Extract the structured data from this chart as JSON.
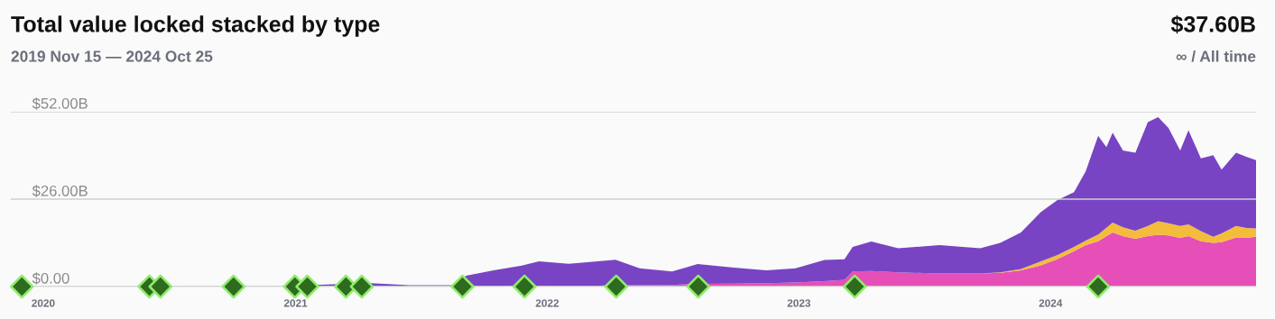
{
  "chart_data": {
    "type": "area",
    "stacked": true,
    "title": "Total value locked stacked by type",
    "subtitle": "2019 Nov 15 — 2024 Oct 25",
    "annotations": [
      "$37.60B",
      "∞ / All time"
    ],
    "x": [
      "2019-11-15",
      "2020-06-01",
      "2020-12-01",
      "2021-02-15",
      "2021-04-15",
      "2021-06-15",
      "2021-08-25",
      "2021-09-05",
      "2021-10-15",
      "2021-11-25",
      "2021-12-20",
      "2022-02-01",
      "2022-03-15",
      "2022-04-10",
      "2022-05-15",
      "2022-07-01",
      "2022-08-07",
      "2022-09-29",
      "2022-11-15",
      "2022-12-27",
      "2023-02-07",
      "2023-03-08",
      "2023-03-20",
      "2023-04-16",
      "2023-05-25",
      "2023-07-24",
      "2023-09-21",
      "2023-10-20",
      "2023-11-19",
      "2023-12-18",
      "2024-01-11",
      "2024-02-04",
      "2024-02-21",
      "2024-03-10",
      "2024-03-22",
      "2024-03-31",
      "2024-04-15",
      "2024-05-03",
      "2024-05-21",
      "2024-06-05",
      "2024-06-20",
      "2024-07-07",
      "2024-07-19",
      "2024-08-06",
      "2024-08-24",
      "2024-09-05",
      "2024-09-26",
      "2024-10-11",
      "2024-10-25"
    ],
    "series": [
      {
        "color": "#e64fb8",
        "values": [
          0,
          0,
          0,
          0.1,
          0.1,
          0.1,
          0.1,
          0.1,
          0.1,
          0.2,
          0.2,
          0.3,
          0.3,
          0.4,
          0.4,
          0.5,
          0.8,
          0.9,
          1.0,
          1.2,
          1.6,
          2.0,
          4.5,
          4.6,
          4.2,
          3.9,
          3.9,
          4.1,
          4.8,
          6.3,
          8.2,
          10.5,
          12.3,
          13.5,
          15.0,
          16.1,
          15.0,
          14.2,
          15.0,
          15.4,
          15.2,
          14.5,
          15.0,
          13.5,
          13.0,
          13.2,
          14.6,
          14.5,
          14.8
        ]
      },
      {
        "color": "#f3bd3b",
        "values": [
          0,
          0,
          0,
          0,
          0,
          0,
          0,
          0,
          0,
          0,
          0,
          0,
          0,
          0,
          0,
          0,
          0,
          0,
          0,
          0,
          0,
          0,
          0,
          0,
          0,
          0,
          0,
          0.1,
          0.4,
          1.2,
          1.2,
          1.3,
          1.4,
          2.0,
          2.5,
          2.9,
          2.6,
          2.4,
          3.0,
          4.0,
          3.6,
          3.5,
          3.5,
          3.0,
          1.8,
          2.6,
          3.4,
          2.9,
          2.5
        ]
      },
      {
        "color": "#7844c4",
        "values": [
          0,
          0,
          0.1,
          0.5,
          1.0,
          0.3,
          0.3,
          3.1,
          4.7,
          6.0,
          7.3,
          6.5,
          7.2,
          7.6,
          5.0,
          4.0,
          5.9,
          4.7,
          3.8,
          4.2,
          6.3,
          6.1,
          7.3,
          8.8,
          7.2,
          8.4,
          7.5,
          8.8,
          10.9,
          14.7,
          16.3,
          16.3,
          20.6,
          29.3,
          24.0,
          26.8,
          22.9,
          23.2,
          30.9,
          31.0,
          28.4,
          22.5,
          28.0,
          21.6,
          24.3,
          19.0,
          21.8,
          21.2,
          20.3
        ]
      },
      {
        "type": "scatter",
        "marker": "diamond",
        "color": "#2e6b1e",
        "x": [
          "2019-12-01",
          "2020-06-03",
          "2020-06-19",
          "2020-10-03",
          "2020-12-31",
          "2021-01-18",
          "2021-03-15",
          "2021-04-07",
          "2021-08-31",
          "2021-11-29",
          "2022-04-11",
          "2022-08-08",
          "2023-03-23",
          "2024-03-10"
        ],
        "values": [
          0,
          0,
          0,
          0,
          0,
          0,
          0,
          0,
          0,
          0,
          0,
          0,
          0,
          0
        ]
      }
    ],
    "xlim": [
      "2019-11-15",
      "2024-10-25"
    ],
    "xticks": [
      {
        "value": "2020-01-01",
        "label": "2020"
      },
      {
        "value": "2021-01-01",
        "label": "2021"
      },
      {
        "value": "2022-01-01",
        "label": "2022"
      },
      {
        "value": "2023-01-01",
        "label": "2023"
      },
      {
        "value": "2024-01-01",
        "label": "2024"
      }
    ],
    "ylim": [
      0,
      52
    ],
    "yticks": [
      {
        "value": 0,
        "label": "$0.00"
      },
      {
        "value": 26,
        "label": "$26.00B"
      },
      {
        "value": 52,
        "label": "$52.00B"
      }
    ],
    "grid": "y",
    "legend": false
  }
}
